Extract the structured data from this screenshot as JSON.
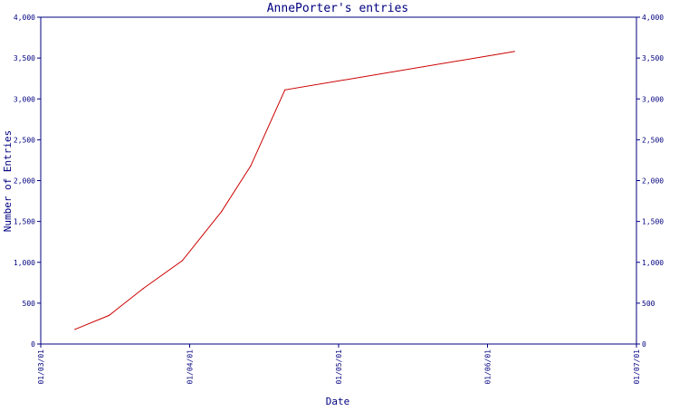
{
  "chart_data": {
    "type": "line",
    "title": "AnnePorter's entries",
    "xlabel": "Date",
    "ylabel": "Number of Entries",
    "x_tick_labels": [
      "01/03/01",
      "01/04/01",
      "01/05/01",
      "01/06/01",
      "01/07/01"
    ],
    "x_range": [
      "2001-03-01",
      "2001-07-01"
    ],
    "y_ticks": [
      0,
      500,
      1000,
      1500,
      2000,
      2500,
      3000,
      3500,
      4000
    ],
    "y_tick_labels": [
      "0",
      "500",
      "1,000",
      "1,500",
      "2,000",
      "2,500",
      "3,000",
      "3,500",
      "4,000"
    ],
    "ylim": [
      0,
      4000
    ],
    "grid": false,
    "series": [
      {
        "color": "#cc0000",
        "points": [
          {
            "x": "2001-03-08",
            "y": 180
          },
          {
            "x": "2001-03-15",
            "y": 350
          },
          {
            "x": "2001-03-22",
            "y": 680
          },
          {
            "x": "2001-03-30",
            "y": 1020
          },
          {
            "x": "2001-04-07",
            "y": 1620
          },
          {
            "x": "2001-04-13",
            "y": 2180
          },
          {
            "x": "2001-04-20",
            "y": 3110
          },
          {
            "x": "2001-06-06",
            "y": 3580
          }
        ]
      }
    ]
  },
  "colors": {
    "axis": "#000080",
    "text": "#000080",
    "line": "#cc0000",
    "background": "#ffffff"
  }
}
